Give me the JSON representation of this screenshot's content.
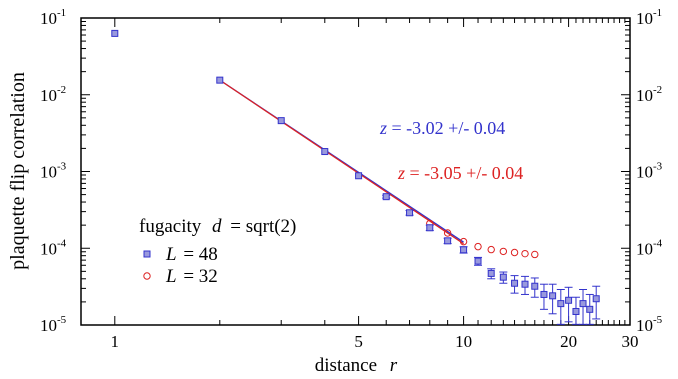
{
  "chart_data": {
    "type": "scatter",
    "x_scale": "log",
    "y_scale": "log",
    "xlim": [
      0.8,
      30
    ],
    "ylim": [
      1e-05,
      0.1
    ],
    "xlabel_text": "distance",
    "xlabel_var": "r",
    "ylabel": "plaquette flip correlation",
    "x_ticks": [
      {
        "value": 1,
        "label": "1"
      },
      {
        "value": 5,
        "label": "5"
      },
      {
        "value": 10,
        "label": "10"
      },
      {
        "value": 20,
        "label": "20"
      },
      {
        "value": 30,
        "label": "30"
      }
    ],
    "y_ticks": [
      {
        "value": 0.1,
        "base": "10",
        "exp": "-1"
      },
      {
        "value": 0.01,
        "base": "10",
        "exp": "-2"
      },
      {
        "value": 0.001,
        "base": "10",
        "exp": "-3"
      },
      {
        "value": 0.0001,
        "base": "10",
        "exp": "-4"
      },
      {
        "value": 1e-05,
        "base": "10",
        "exp": "-5"
      }
    ],
    "grid": false,
    "legend_title": {
      "prefix": "fugacity",
      "var": "d",
      "suffix": "= sqrt(2)"
    },
    "series": [
      {
        "name": "L = 48",
        "legend_var": "L",
        "legend_value": "= 48",
        "marker": "square",
        "color": "#3333cc",
        "fill": "#9999dd",
        "points": [
          {
            "x": 1,
            "y": 0.063,
            "err": 0
          },
          {
            "x": 2,
            "y": 0.0155,
            "err": 0
          },
          {
            "x": 3,
            "y": 0.0046,
            "err": 0
          },
          {
            "x": 4,
            "y": 0.00182,
            "err": 0
          },
          {
            "x": 5,
            "y": 0.00088,
            "err": 0
          },
          {
            "x": 6,
            "y": 0.00047,
            "err": 2e-05
          },
          {
            "x": 7,
            "y": 0.00029,
            "err": 2e-05
          },
          {
            "x": 8,
            "y": 0.000185,
            "err": 1.5e-05
          },
          {
            "x": 9,
            "y": 0.000125,
            "err": 1e-05
          },
          {
            "x": 10,
            "y": 9.55e-05,
            "err": 9e-06
          },
          {
            "x": 11,
            "y": 6.8e-05,
            "err": 8e-06
          },
          {
            "x": 12,
            "y": 4.7e-05,
            "err": 7e-06
          },
          {
            "x": 13,
            "y": 4.2e-05,
            "err": 7e-06
          },
          {
            "x": 14,
            "y": 3.5e-05,
            "err": 9e-06
          },
          {
            "x": 15,
            "y": 3.4e-05,
            "err": 9e-06
          },
          {
            "x": 16,
            "y": 3.2e-05,
            "err": 9e-06
          },
          {
            "x": 17,
            "y": 2.5e-05,
            "err": 9e-06
          },
          {
            "x": 18,
            "y": 2.4e-05,
            "err": 1e-05
          },
          {
            "x": 19,
            "y": 1.9e-05,
            "err": 1e-05
          },
          {
            "x": 20,
            "y": 2.1e-05,
            "err": 1e-05
          },
          {
            "x": 21,
            "y": 1.5e-05,
            "err": 8e-06
          },
          {
            "x": 22,
            "y": 1.9e-05,
            "err": 1e-05
          },
          {
            "x": 23,
            "y": 1.6e-05,
            "err": 9e-06
          },
          {
            "x": 24,
            "y": 2.2e-05,
            "err": 1e-05
          }
        ]
      },
      {
        "name": "L = 32",
        "legend_var": "L",
        "legend_value": "= 32",
        "marker": "circle",
        "color": "#dd2222",
        "fill": "none",
        "points": [
          {
            "x": 8,
            "y": 0.00021,
            "err": 0
          },
          {
            "x": 9,
            "y": 0.000158,
            "err": 0
          },
          {
            "x": 10,
            "y": 0.000122,
            "err": 0
          },
          {
            "x": 11,
            "y": 0.000105,
            "err": 0
          },
          {
            "x": 12,
            "y": 9.6e-05,
            "err": 0
          },
          {
            "x": 13,
            "y": 9.1e-05,
            "err": 0
          },
          {
            "x": 14,
            "y": 8.8e-05,
            "err": 0
          },
          {
            "x": 15,
            "y": 8.5e-05,
            "err": 0
          },
          {
            "x": 16,
            "y": 8.3e-05,
            "err": 0
          }
        ]
      }
    ],
    "fit_lines": [
      {
        "color": "#3333cc",
        "x_range": [
          2,
          10
        ],
        "y_start": 0.0155,
        "slope": -3.02
      },
      {
        "color": "#dd2222",
        "x_range": [
          2,
          10
        ],
        "y_start": 0.0155,
        "slope": -3.05
      }
    ],
    "annotations": [
      {
        "id": "fit-48",
        "var": "z",
        "text": " = -3.02 +/- 0.04",
        "color": "#3333cc"
      },
      {
        "id": "fit-32",
        "var": "z",
        "text": " = -3.05 +/- 0.04",
        "color": "#dd2222"
      }
    ]
  }
}
